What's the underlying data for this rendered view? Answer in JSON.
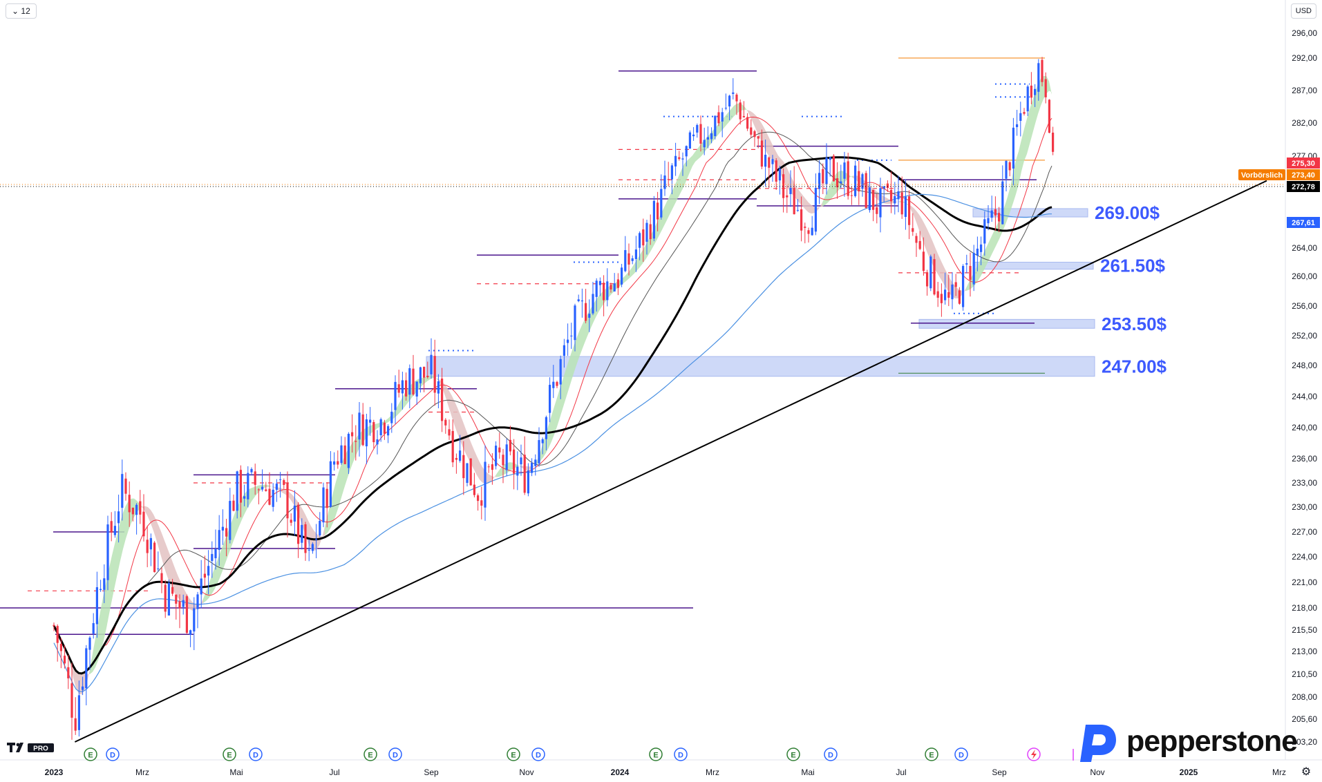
{
  "toolbar": {
    "interval_label": "12",
    "currency_label": "USD"
  },
  "chart_data": {
    "type": "candlestick",
    "title": "",
    "y_axis": {
      "ticks": [
        "296,00",
        "292,00",
        "287,00",
        "282,00",
        "277,00",
        "264,00",
        "260,00",
        "256,00",
        "252,00",
        "248,00",
        "244,00",
        "240,00",
        "236,00",
        "233,00",
        "230,00",
        "227,00",
        "224,00",
        "221,00",
        "218,00",
        "215,50",
        "213,00",
        "210,50",
        "208,00",
        "205,60",
        "203,20"
      ],
      "tick_values": [
        296,
        292,
        287,
        282,
        277,
        264,
        260,
        256,
        252,
        248,
        244,
        240,
        236,
        233,
        230,
        227,
        224,
        221,
        218,
        215.5,
        213,
        210.5,
        208,
        205.6,
        203.2
      ]
    },
    "x_axis": {
      "labels": [
        "2023",
        "Mrz",
        "Mai",
        "Jul",
        "Sep",
        "Nov",
        "2024",
        "Mrz",
        "Mai",
        "Jul",
        "Sep",
        "Nov",
        "2025",
        "Mrz"
      ],
      "bold": [
        true,
        false,
        false,
        false,
        false,
        false,
        true,
        false,
        false,
        false,
        false,
        false,
        true,
        false
      ],
      "dates": [
        "2023-01-01",
        "2023-03-01",
        "2023-05-01",
        "2023-07-01",
        "2023-09-01",
        "2023-11-01",
        "2024-01-01",
        "2024-03-01",
        "2024-05-01",
        "2024-07-01",
        "2024-09-01",
        "2024-11-01",
        "2025-01-01",
        "2025-03-01"
      ]
    },
    "price_tags": [
      {
        "label": "275,30",
        "value": 275.3,
        "color": "#f23645"
      },
      {
        "label": "273,40",
        "value": 273.4,
        "color": "#f57c00"
      },
      {
        "label": "272,78",
        "value": 272.78,
        "color": "#000000"
      },
      {
        "label": "267,61",
        "value": 267.61,
        "color": "#2962ff"
      }
    ],
    "session_label": "Vorbörslich",
    "current_price": 272.78,
    "zones": [
      {
        "label": "269.00$",
        "low": 268.4,
        "high": 269.6
      },
      {
        "label": "261.50$",
        "low": 261.0,
        "high": 262.0
      },
      {
        "label": "253.50$",
        "low": 253.0,
        "high": 254.2
      },
      {
        "label": "247.00$",
        "low": 246.6,
        "high": 249.2
      }
    ],
    "trendline": {
      "from": {
        "date": "2023-01-15",
        "value": 203.2
      },
      "to": {
        "date": "2024-10-15",
        "value": 273.4
      }
    },
    "earnings_markers": [
      "E",
      "D"
    ],
    "series": [
      {
        "name": "",
        "kind": "close",
        "points": [
          [
            "2023-01-01",
            216
          ],
          [
            "2023-01-15",
            206
          ],
          [
            "2023-02-01",
            222
          ],
          [
            "2023-02-15",
            232
          ],
          [
            "2023-03-01",
            229
          ],
          [
            "2023-03-15",
            220
          ],
          [
            "2023-04-01",
            217
          ],
          [
            "2023-04-15",
            224
          ],
          [
            "2023-05-01",
            232
          ],
          [
            "2023-05-15",
            233
          ],
          [
            "2023-06-01",
            231
          ],
          [
            "2023-06-15",
            223
          ],
          [
            "2023-07-01",
            236
          ],
          [
            "2023-07-15",
            240
          ],
          [
            "2023-08-01",
            241
          ],
          [
            "2023-08-15",
            246
          ],
          [
            "2023-09-01",
            247
          ],
          [
            "2023-09-15",
            238
          ],
          [
            "2023-10-01",
            232
          ],
          [
            "2023-10-15",
            236
          ],
          [
            "2023-11-01",
            234
          ],
          [
            "2023-11-15",
            243
          ],
          [
            "2023-12-01",
            253
          ],
          [
            "2023-12-15",
            258
          ],
          [
            "2024-01-01",
            260
          ],
          [
            "2024-01-15",
            265
          ],
          [
            "2024-02-01",
            273
          ],
          [
            "2024-02-15",
            278
          ],
          [
            "2024-03-01",
            282
          ],
          [
            "2024-03-15",
            286
          ],
          [
            "2024-04-01",
            277
          ],
          [
            "2024-04-15",
            272
          ],
          [
            "2024-05-01",
            268
          ],
          [
            "2024-05-15",
            275
          ],
          [
            "2024-06-01",
            273
          ],
          [
            "2024-06-15",
            270
          ],
          [
            "2024-07-01",
            271
          ],
          [
            "2024-07-15",
            262
          ],
          [
            "2024-08-01",
            256
          ],
          [
            "2024-08-15",
            262
          ],
          [
            "2024-09-01",
            270
          ],
          [
            "2024-09-15",
            284
          ],
          [
            "2024-09-25",
            291
          ],
          [
            "2024-10-01",
            287
          ],
          [
            "2024-10-05",
            272.78
          ]
        ]
      }
    ]
  },
  "brand": {
    "name": "pepperstone",
    "platform": "PRO"
  }
}
